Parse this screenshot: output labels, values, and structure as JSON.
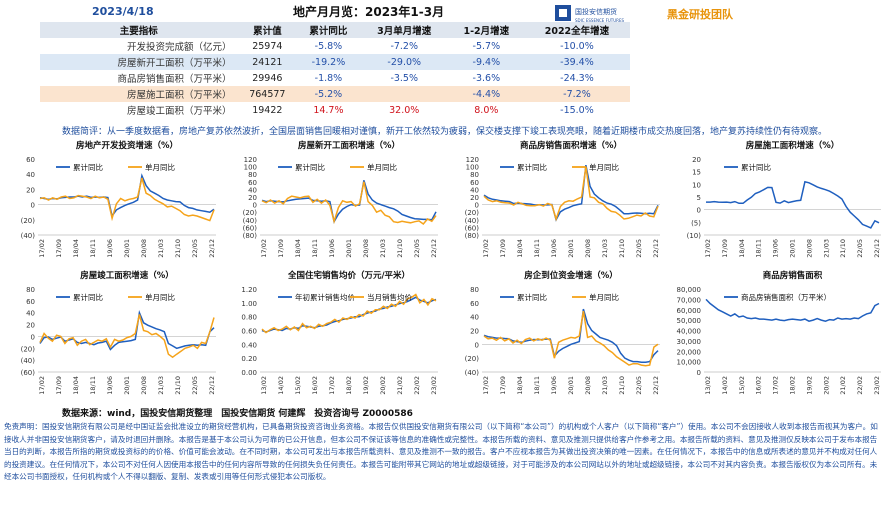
{
  "header": {
    "date": "2023/4/18",
    "title": "地产月月览：2023年1-3月",
    "logo_text": "国投安信期货",
    "logo_sub": "SDIC ESSENCE FUTURES",
    "team": "黑金研投团队"
  },
  "table": {
    "headers": [
      "主要指标",
      "累计值",
      "累计同比",
      "3月单月增速",
      "1-2月增速",
      "2022全年增速"
    ],
    "rows": [
      [
        "开发投资完成额（亿元）",
        "25974",
        "-5.8%",
        "-7.2%",
        "-5.7%",
        "-10.0%"
      ],
      [
        "房屋新开工面积（万平米）",
        "24121",
        "-19.2%",
        "-29.0%",
        "-9.4%",
        "-39.4%"
      ],
      [
        "商品房销售面积（万平米）",
        "29946",
        "-1.8%",
        "-3.5%",
        "-3.6%",
        "-24.3%"
      ],
      [
        "房屋施工面积（万平米）",
        "764577",
        "-5.2%",
        "",
        "-4.4%",
        "-7.2%"
      ],
      [
        "房屋竣工面积（万平米）",
        "19422",
        "14.7%",
        "32.0%",
        "8.0%",
        "-15.0%"
      ]
    ]
  },
  "comment": "数据简评：从一季度数据看，房地产复苏依然波折，全国层面销售回暖相对谨慎，新开工依然较为疲弱，保交楼支撑下竣工表现亮眼，随着近期楼市成交热度回落，地产复苏持续性仍有待观察。",
  "colors": {
    "cum": "#1f5fbf",
    "mon": "#f5a31a",
    "accent": "#1f4e9d"
  },
  "chart_data": [
    {
      "type": "line",
      "title": "房地产开发投资增速（%）",
      "ylim": [
        -40,
        60
      ],
      "yticks": [
        "60",
        "40",
        "20",
        "0",
        "(20)",
        "(40)"
      ],
      "xticks": [
        "17/02",
        "17/09",
        "18/04",
        "18/11",
        "19/06",
        "20/01",
        "20/08",
        "21/03",
        "21/10",
        "22/05",
        "22/12"
      ],
      "series": [
        {
          "name": "累计同比",
          "values": [
            9,
            8,
            7,
            8,
            7.5,
            9,
            9.5,
            10,
            10,
            11,
            10,
            11,
            9.5,
            10,
            9.5,
            10,
            9.2,
            -15,
            -7,
            -4,
            -1,
            1,
            3,
            6,
            38,
            25,
            18,
            15,
            12,
            8,
            6,
            5,
            4,
            3.5,
            -1,
            -4,
            -5,
            -7,
            -8,
            -9,
            -10,
            -6
          ]
        },
        {
          "name": "单月同比",
          "values": [
            8,
            9,
            6,
            9,
            7,
            10,
            11,
            8,
            9,
            12,
            11,
            10,
            8,
            11,
            9,
            10,
            7,
            -18,
            1,
            8,
            5,
            7,
            8,
            10,
            35,
            15,
            12,
            7,
            4,
            1,
            -3,
            -2,
            -5,
            -8,
            -13,
            -15,
            -14,
            -15,
            -17,
            -19,
            -21,
            -7
          ]
        }
      ]
    },
    {
      "type": "line",
      "title": "房屋新开工面积增速（%）",
      "ylim": [
        -80,
        120
      ],
      "yticks": [
        "120",
        "100",
        "80",
        "60",
        "40",
        "20",
        "0",
        "(20)",
        "(40)",
        "(60)",
        "(80)"
      ],
      "xticks": [
        "17/02",
        "17/09",
        "18/04",
        "18/11",
        "19/06",
        "20/01",
        "20/08",
        "21/03",
        "21/10",
        "22/05",
        "22/12"
      ],
      "series": [
        {
          "name": "累计同比",
          "values": [
            11,
            8,
            10,
            9,
            8,
            7,
            10,
            12,
            14,
            15,
            16,
            17,
            11,
            10,
            9,
            10,
            8,
            -45,
            -25,
            -12,
            -5,
            0,
            -2,
            -1,
            64,
            28,
            12,
            4,
            0,
            -4,
            -8,
            -11,
            -17,
            -26,
            -30,
            -34,
            -37,
            -38,
            -39,
            -39,
            -40,
            -19
          ]
        },
        {
          "name": "单月同比",
          "values": [
            10,
            5,
            12,
            4,
            10,
            2,
            16,
            22,
            20,
            18,
            21,
            22,
            6,
            14,
            4,
            12,
            -2,
            -44,
            -8,
            10,
            6,
            8,
            -4,
            2,
            60,
            8,
            -2,
            -20,
            -15,
            -28,
            -32,
            -45,
            -47,
            -44,
            -46,
            -48,
            -45,
            -43,
            -51,
            -38,
            -44,
            -29
          ]
        }
      ]
    },
    {
      "type": "line",
      "title": "商品房销售面积增速（%）",
      "ylim": [
        -80,
        120
      ],
      "yticks": [
        "120",
        "100",
        "80",
        "60",
        "40",
        "20",
        "0",
        "(20)",
        "(40)",
        "(60)",
        "(80)"
      ],
      "xticks": [
        "17/02",
        "17/09",
        "18/04",
        "18/11",
        "19/06",
        "20/01",
        "20/08",
        "21/03",
        "21/10",
        "22/05",
        "22/12"
      ],
      "series": [
        {
          "name": "累计同比",
          "values": [
            25,
            18,
            14,
            12,
            10,
            9,
            8,
            3,
            4,
            3,
            2,
            1.3,
            -1,
            -0.5,
            -1,
            -0.7,
            -0.1,
            -40,
            -19,
            -12,
            -8,
            -3,
            0,
            2,
            104,
            48,
            28,
            18,
            10,
            4,
            1,
            -5,
            -14,
            -24,
            -24,
            -23,
            -22,
            -23,
            -24,
            -23,
            -24,
            -2
          ]
        },
        {
          "name": "单月同比",
          "values": [
            22,
            12,
            8,
            10,
            6,
            5,
            4,
            -1,
            6,
            2,
            -2,
            -3,
            -3,
            0,
            -4,
            3,
            -1,
            -38,
            -5,
            6,
            10,
            9,
            15,
            20,
            100,
            20,
            18,
            6,
            2,
            -10,
            -18,
            -20,
            -28,
            -38,
            -36,
            -32,
            -28,
            -30,
            -22,
            -30,
            -32,
            -4
          ]
        }
      ]
    },
    {
      "type": "line",
      "title": "房屋施工面积增速（%）",
      "ylim": [
        -10,
        20
      ],
      "yticks": [
        "20",
        "15",
        "10",
        "5",
        "0",
        "(5)",
        "(10)"
      ],
      "xticks": [
        "17/02",
        "17/09",
        "18/04",
        "18/11",
        "19/06",
        "20/01",
        "20/08",
        "21/03",
        "21/10",
        "22/05",
        "22/12"
      ],
      "series": [
        {
          "name": "累计同比",
          "values": [
            3,
            3,
            3.2,
            3,
            2.9,
            3,
            2.8,
            3.2,
            2.5,
            2.5,
            3.8,
            4.9,
            6.4,
            7,
            7.9,
            8.8,
            8.7,
            2.9,
            2.6,
            3.5,
            2.8,
            3.2,
            3.5,
            3.7,
            11,
            10.6,
            9.8,
            9,
            8.4,
            7.9,
            7.3,
            6.4,
            5.4,
            4.2,
            1.3,
            -1,
            -2.5,
            -4,
            -5.8,
            -6.5,
            -7.2,
            -4.4,
            -5.2
          ]
        }
      ]
    },
    {
      "type": "line",
      "title": "房屋竣工面积增速（%）",
      "ylim": [
        -60,
        80
      ],
      "yticks": [
        "80",
        "60",
        "40",
        "20",
        "0",
        "(20)",
        "(40)",
        "(60)"
      ],
      "xticks": [
        "17/02",
        "17/09",
        "18/04",
        "18/11",
        "19/06",
        "20/01",
        "20/08",
        "21/03",
        "21/10",
        "22/05",
        "22/12"
      ],
      "series": [
        {
          "name": "累计同比",
          "values": [
            -12,
            -2,
            -1,
            -5,
            -3,
            -1,
            -8,
            -6,
            -4,
            -10,
            -12,
            -10,
            -12,
            -14,
            -11,
            -10,
            -8,
            -22,
            -15,
            -10,
            -9,
            -8,
            -7,
            -5,
            40,
            23,
            19,
            16,
            13,
            11,
            8,
            -12,
            -16,
            -20,
            -18,
            -16,
            -15,
            -14,
            -15,
            -14,
            -15,
            8,
            14.7
          ]
        },
        {
          "name": "单月同比",
          "values": [
            -10,
            5,
            -3,
            -8,
            2,
            0,
            -12,
            -4,
            -2,
            -15,
            -8,
            -5,
            -14,
            -10,
            -6,
            -8,
            -4,
            -18,
            -5,
            -8,
            -6,
            -2,
            0,
            5,
            37,
            10,
            8,
            3,
            5,
            0,
            -6,
            -30,
            -35,
            -30,
            -25,
            -20,
            -18,
            -15,
            -20,
            -10,
            -12,
            8,
            32
          ]
        }
      ]
    },
    {
      "type": "line",
      "title": "全国住宅销售均价（万元/平米）",
      "ylim": [
        0,
        1.2
      ],
      "yticks": [
        "1.20",
        "1.00",
        "0.80",
        "0.60",
        "0.40",
        "0.20",
        "0.00"
      ],
      "xticks": [
        "13/02",
        "14/02",
        "15/02",
        "16/02",
        "17/02",
        "18/02",
        "19/02",
        "20/02",
        "21/02",
        "22/02",
        "23/02"
      ],
      "series": [
        {
          "name": "年初累计销售均价",
          "values": [
            0.6,
            0.58,
            0.6,
            0.62,
            0.61,
            0.6,
            0.63,
            0.62,
            0.64,
            0.63,
            0.67,
            0.66,
            0.65,
            0.64,
            0.66,
            0.67,
            0.68,
            0.71,
            0.73,
            0.74,
            0.76,
            0.77,
            0.78,
            0.8,
            0.8,
            0.83,
            0.85,
            0.87,
            0.88,
            0.91,
            0.92,
            0.94,
            0.95,
            0.97,
            0.99,
            1.0,
            1.02,
            1.05,
            1.08,
            1.04,
            1.02,
            1.0,
            1.03,
            1.05
          ]
        },
        {
          "name": "当月销售均价",
          "values": [
            0.62,
            0.57,
            0.61,
            0.64,
            0.6,
            0.62,
            0.66,
            0.61,
            0.65,
            0.6,
            0.7,
            0.64,
            0.66,
            0.63,
            0.69,
            0.66,
            0.7,
            0.72,
            0.76,
            0.72,
            0.78,
            0.76,
            0.8,
            0.78,
            0.83,
            0.81,
            0.88,
            0.85,
            0.9,
            0.9,
            0.95,
            0.92,
            0.98,
            0.95,
            1.02,
            0.98,
            1.06,
            1.08,
            1.12,
            1.0,
            1.05,
            0.97,
            1.06,
            1.03
          ]
        }
      ]
    },
    {
      "type": "line",
      "title": "房企到位资金增速（%）",
      "ylim": [
        -40,
        80
      ],
      "yticks": [
        "80",
        "60",
        "40",
        "20",
        "0",
        "(20)",
        "(40)"
      ],
      "xticks": [
        "17/02",
        "17/09",
        "18/04",
        "18/11",
        "19/06",
        "20/01",
        "20/08",
        "21/03",
        "21/10",
        "22/05",
        "22/12"
      ],
      "series": [
        {
          "name": "累计同比",
          "values": [
            13,
            11,
            10,
            9,
            9,
            8.5,
            8,
            5,
            4,
            3,
            4.5,
            6,
            7,
            6.5,
            7,
            7.5,
            7.6,
            -17,
            -10,
            -6,
            -3,
            0,
            2,
            4,
            51,
            30,
            20,
            15,
            10,
            8,
            6,
            3,
            -2,
            -13,
            -20,
            -23,
            -25,
            -25,
            -26,
            -26,
            -25,
            -15,
            -9
          ]
        },
        {
          "name": "单月同比",
          "values": [
            12,
            8,
            9,
            6,
            10,
            5,
            8,
            2,
            6,
            1,
            7,
            9,
            5,
            8,
            6,
            9,
            6,
            -20,
            3,
            6,
            8,
            10,
            9,
            12,
            48,
            10,
            12,
            5,
            2,
            -2,
            -8,
            -12,
            -18,
            -22,
            -26,
            -30,
            -28,
            -28,
            -30,
            -31,
            -30,
            -4,
            0
          ]
        }
      ]
    },
    {
      "type": "line",
      "title": "商品房销售面积",
      "ylim": [
        0,
        80000
      ],
      "yticks": [
        "80,000",
        "70,000",
        "60,000",
        "50,000",
        "40,000",
        "30,000",
        "20,000",
        "10,000",
        "0"
      ],
      "xticks": [
        "13/02",
        "14/02",
        "15/02",
        "16/02",
        "17/02",
        "18/02",
        "19/02",
        "20/02",
        "21/02",
        "22/02",
        "23/02"
      ],
      "series": [
        {
          "name": "商品房销售面积（万平米）",
          "values": [
            70000,
            66000,
            63000,
            60000,
            58000,
            56000,
            54000,
            56000,
            53000,
            54000,
            52000,
            51500,
            52000,
            51000,
            51000,
            50500,
            50000,
            51000,
            50000,
            49500,
            50500,
            51000,
            50500,
            50000,
            51000,
            49000,
            50000,
            51500,
            50000,
            49000,
            50500,
            50000,
            52000,
            51000,
            51500,
            51000,
            52000,
            51500,
            54000,
            56000,
            57000,
            64000,
            66000
          ]
        }
      ]
    }
  ],
  "source_line": "数据来源：wind，国投安信期货整理　国投安信期货 何建辉　投资咨询号 Z0000586",
  "disclaimer": "免责声明：国投安信期货有限公司是经中国证监会批准设立的期货经营机构，已具备期货投资咨询业务资格。本报告仅供国投安信期货有限公司（以下简称“本公司”）的机构或个人客户（以下简称“客户”）使用。本公司不会因接收人收到本报告而视其为客户。如接收人并非国投安信期货客户，请及时退回并删除。本报告是基于本公司认为可靠的已公开信息，但本公司不保证该等信息的准确性或完整性。本报告所载的资料、意见及推测只提供给客户作参考之用。本报告所载的资料、意见及推测仅反映本公司于发布本报告当日的判断，本报告所指的期货或投资标的的价格、价值可能会波动。在不同时期，本公司可发出与本报告所载资料、意见及推测不一致的报告。客户不应视本报告为其做出投资决策的唯一因素。在任何情况下，本报告中的信息或所表述的意见并不构成对任何人的投资建议。在任何情况下，本公司不对任何人因使用本报告中的任何内容所导致的任何损失负任何责任。本报告可能附带其它网站的地址或超级链接，对于可能涉及的本公司网站以外的地址或超级链接，本公司不对其内容负责。本报告版权仅为本公司所有。未经本公司书面授权，任何机构或个人不得以翻版、复制、发表或引用等任何形式侵犯本公司版权。"
}
